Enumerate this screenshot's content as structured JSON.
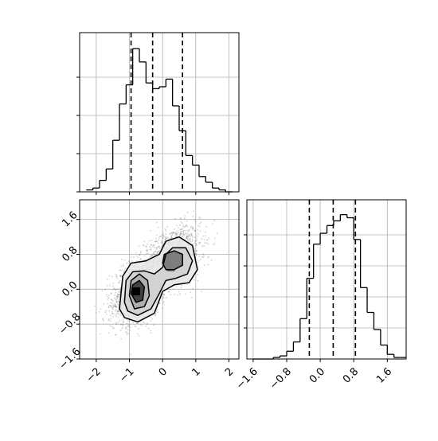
{
  "chart_data": [
    {
      "panel": "top-left",
      "type": "histogram",
      "title": "",
      "xlabel": "",
      "ylabel": "",
      "xlim": [
        -2.5,
        2.3
      ],
      "x_ticks": [
        -2,
        -1,
        0,
        1,
        2
      ],
      "x_tick_labels_shown": false,
      "y_tick_labels_shown": false,
      "grid": true,
      "bin_edges": [
        -2.3,
        -2.1,
        -1.9,
        -1.7,
        -1.5,
        -1.3,
        -1.1,
        -0.9,
        -0.7,
        -0.5,
        -0.3,
        -0.1,
        0.1,
        0.3,
        0.5,
        0.7,
        0.9,
        1.1,
        1.3,
        1.5,
        1.7,
        1.9,
        2.1
      ],
      "counts": [
        1,
        2,
        6,
        12,
        27,
        46,
        56,
        75,
        68,
        57,
        54,
        55,
        59,
        45,
        32,
        19,
        14,
        8,
        5,
        2,
        1,
        0
      ],
      "ymax": 80,
      "quantile_lines": [
        -0.95,
        -0.3,
        0.6
      ]
    },
    {
      "panel": "bottom-left",
      "type": "scatter-density",
      "title": "",
      "xlabel": "",
      "ylabel": "",
      "xlim": [
        -2.5,
        2.3
      ],
      "ylim": [
        -1.6,
        2.05
      ],
      "x_ticks": [
        -2,
        -1,
        0,
        1,
        2
      ],
      "x_tick_labels": [
        "−2",
        "−1",
        "0",
        "1",
        "2"
      ],
      "y_ticks": [
        -1.6,
        -0.8,
        0.0,
        0.8,
        1.6
      ],
      "y_tick_labels": [
        "−1.6",
        "−0.8",
        "0.0",
        "0.8",
        "1.6"
      ],
      "grid": true,
      "cluster_centers": [
        [
          -0.75,
          -0.05
        ],
        [
          0.3,
          0.7
        ]
      ],
      "density_peaks": [
        [
          -0.8,
          -0.05
        ],
        [
          0.25,
          0.5
        ]
      ],
      "contours": [
        [
          [
            -1.3,
            -0.45
          ],
          [
            -1.2,
            0.3
          ],
          [
            -0.95,
            0.6
          ],
          [
            -0.5,
            0.65
          ],
          [
            -0.1,
            0.8
          ],
          [
            0.1,
            1.1
          ],
          [
            0.5,
            1.2
          ],
          [
            0.9,
            1.0
          ],
          [
            1.05,
            0.45
          ],
          [
            0.8,
            0.15
          ],
          [
            0.35,
            0.1
          ],
          [
            0.0,
            -0.05
          ],
          [
            -0.25,
            -0.55
          ],
          [
            -0.75,
            -0.75
          ],
          [
            -1.15,
            -0.65
          ]
        ],
        [
          [
            -1.15,
            -0.3
          ],
          [
            -1.1,
            0.2
          ],
          [
            -0.9,
            0.4
          ],
          [
            -0.55,
            0.42
          ],
          [
            -0.25,
            0.35
          ],
          [
            0.0,
            0.5
          ],
          [
            0.1,
            0.8
          ],
          [
            0.3,
            0.95
          ],
          [
            0.7,
            0.95
          ],
          [
            0.9,
            0.65
          ],
          [
            0.75,
            0.35
          ],
          [
            0.4,
            0.25
          ],
          [
            0.1,
            0.2
          ],
          [
            -0.1,
            -0.1
          ],
          [
            -0.35,
            -0.45
          ],
          [
            -0.75,
            -0.6
          ],
          [
            -1.05,
            -0.5
          ]
        ],
        [
          [
            -1.0,
            -0.15
          ],
          [
            -0.95,
            0.2
          ],
          [
            -0.7,
            0.35
          ],
          [
            -0.45,
            0.2
          ],
          [
            -0.4,
            -0.15
          ],
          [
            -0.55,
            -0.4
          ],
          [
            -0.85,
            -0.45
          ]
        ],
        [
          [
            0.0,
            0.6
          ],
          [
            0.05,
            0.8
          ],
          [
            0.35,
            0.88
          ],
          [
            0.6,
            0.8
          ],
          [
            0.6,
            0.55
          ],
          [
            0.35,
            0.45
          ],
          [
            0.1,
            0.45
          ]
        ],
        [
          [
            -0.95,
            -0.1
          ],
          [
            -0.9,
            0.1
          ],
          [
            -0.7,
            0.2
          ],
          [
            -0.55,
            0.05
          ],
          [
            -0.6,
            -0.25
          ],
          [
            -0.8,
            -0.3
          ]
        ]
      ]
    },
    {
      "panel": "bottom-right",
      "type": "histogram",
      "title": "",
      "xlabel": "",
      "ylabel": "",
      "xlim": [
        -1.75,
        2.05
      ],
      "x_ticks": [
        -1.6,
        -0.8,
        0.0,
        0.8,
        1.6
      ],
      "x_tick_labels": [
        "−1.6",
        "−0.8",
        "0.0",
        "0.8",
        "1.6"
      ],
      "y_tick_labels_shown": false,
      "grid": true,
      "bin_edges": [
        -1.6,
        -1.44,
        -1.28,
        -1.12,
        -0.96,
        -0.8,
        -0.64,
        -0.48,
        -0.32,
        -0.16,
        0.0,
        0.16,
        0.32,
        0.48,
        0.64,
        0.8,
        0.96,
        1.12,
        1.28,
        1.44,
        1.6,
        1.76,
        1.92,
        2.08
      ],
      "counts": [
        0,
        0,
        0,
        1,
        2,
        5,
        11,
        26,
        52,
        74,
        81,
        86,
        89,
        93,
        91,
        77,
        46,
        30,
        19,
        9,
        3,
        1,
        1
      ],
      "ymax": 100,
      "quantile_lines": [
        -0.26,
        0.31,
        0.84
      ]
    }
  ]
}
